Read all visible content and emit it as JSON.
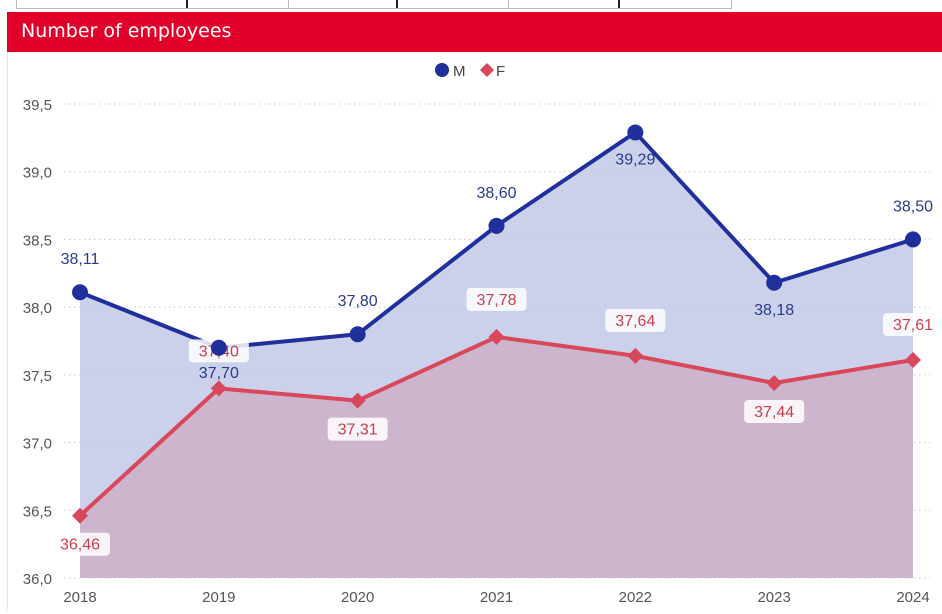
{
  "header": {
    "title": "Number of employees"
  },
  "colors": {
    "header_bg": "#e0002a",
    "series_m": "#1f2f9b",
    "series_f": "#d9485a",
    "area_m": "#c8cdea",
    "area_f": "#cdb0c8"
  },
  "chart_data": {
    "type": "area",
    "x": [
      "2018",
      "2019",
      "2020",
      "2021",
      "2022",
      "2023",
      "2024"
    ],
    "ylim": [
      36.0,
      39.5
    ],
    "yticks": [
      "36,0",
      "36,5",
      "37,0",
      "37,5",
      "38,0",
      "38,5",
      "39,0",
      "39,5"
    ],
    "ytick_values": [
      36.0,
      36.5,
      37.0,
      37.5,
      38.0,
      38.5,
      39.0,
      39.5
    ],
    "grid": true,
    "legend_position": "top-center",
    "series": [
      {
        "name": "M",
        "marker": "circle",
        "values": [
          38.11,
          37.7,
          37.8,
          38.6,
          39.29,
          38.18,
          38.5
        ],
        "labels": [
          "38,11",
          "37,70",
          "37,80",
          "38,60",
          "39,29",
          "38,18",
          "38,50"
        ]
      },
      {
        "name": "F",
        "marker": "diamond",
        "values": [
          36.46,
          37.4,
          37.31,
          37.78,
          37.64,
          37.44,
          37.61
        ],
        "labels": [
          "36,46",
          "37,40",
          "37,31",
          "37,78",
          "37,64",
          "37,44",
          "37,61"
        ]
      }
    ]
  }
}
